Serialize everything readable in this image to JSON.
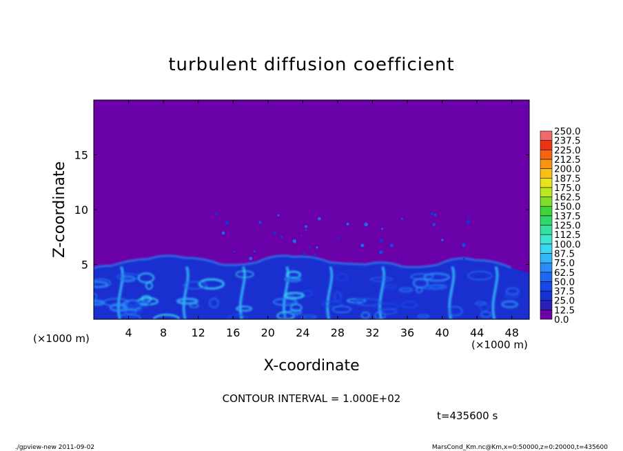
{
  "chart_data": {
    "type": "heatmap",
    "title": "turbulent diffusion coefficient",
    "xlabel": "X-coordinate",
    "ylabel": "Z-coordinate",
    "x_unit": "(×1000 m)",
    "y_unit": "(×1000 m)",
    "xlim": [
      0,
      50
    ],
    "ylim": [
      0,
      20
    ],
    "x_ticks": [
      4,
      8,
      12,
      16,
      20,
      24,
      28,
      32,
      36,
      40,
      44,
      48
    ],
    "y_ticks": [
      5,
      10,
      15
    ],
    "colorbar": {
      "levels": [
        "0.0",
        "12.5",
        "25.0",
        "37.5",
        "50.0",
        "62.5",
        "75.0",
        "87.5",
        "100.0",
        "112.5",
        "125.0",
        "137.5",
        "150.0",
        "162.5",
        "175.0",
        "187.5",
        "200.0",
        "212.5",
        "225.0",
        "237.5",
        "250.0"
      ],
      "colors": [
        "#6a00a8",
        "#2c1fb8",
        "#1532d2",
        "#1648e6",
        "#1f66f0",
        "#2a8df6",
        "#33b7f8",
        "#3ad8f2",
        "#3ee6cf",
        "#36e0a0",
        "#2fd86a",
        "#3fd43a",
        "#7edc2a",
        "#bce620",
        "#e8e41c",
        "#f8c014",
        "#f89414",
        "#f46414",
        "#ec3414",
        "#f06a6a",
        "#f2a0a8"
      ]
    },
    "field_description_points": {
      "background_value": "0.0",
      "turbulent_layer_top_z": [
        4.6,
        5.2,
        5.8,
        5.4,
        4.6,
        5.8,
        5.6,
        4.8,
        5.2,
        4.4,
        5.6,
        5.2,
        4.2
      ]
    },
    "contour_interval": "CONTOUR INTERVAL = 1.000E+02",
    "time_label": "t=435600  s",
    "footer_left": "./gpview-new  2011-09-02",
    "footer_right": "MarsCond_Km.nc@Km,x=0:50000,z=0:20000,t=435600"
  },
  "colors": {
    "background_field": "#6a00a8",
    "page": "#ffffff"
  }
}
